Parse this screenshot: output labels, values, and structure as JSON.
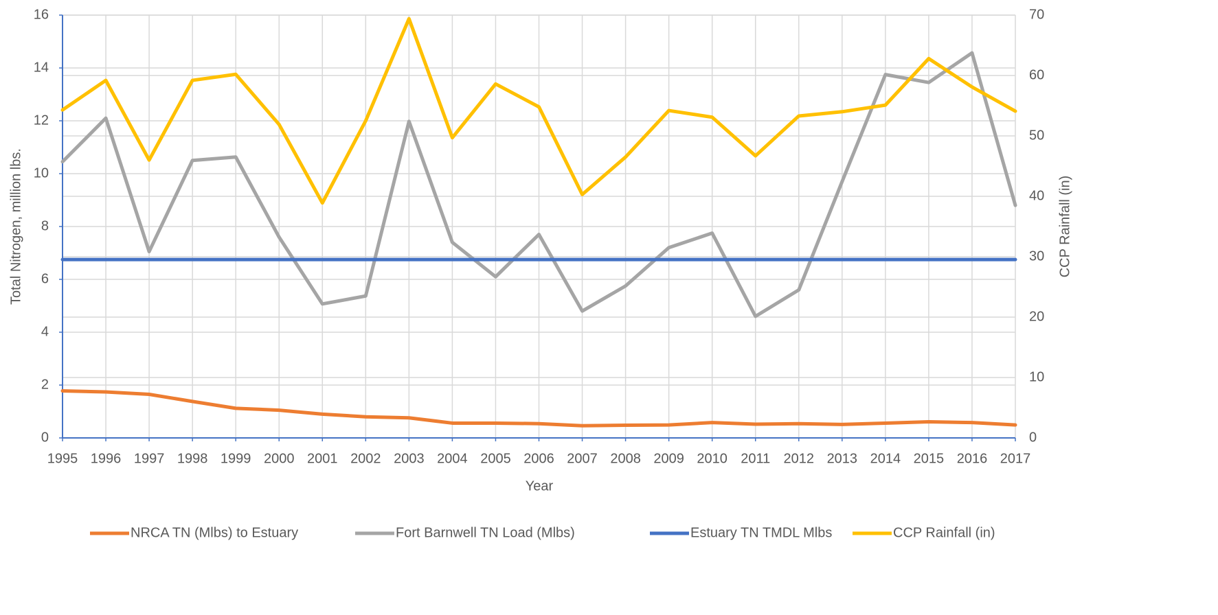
{
  "chart_data": {
    "type": "line",
    "x_label": "Year",
    "y_label": "Total Nitrogen, million lbs.",
    "y2_label": "CCP Rainfall (in)",
    "categories": [
      "1995",
      "1996",
      "1997",
      "1998",
      "1999",
      "2000",
      "2001",
      "2002",
      "2003",
      "2004",
      "2005",
      "2006",
      "2007",
      "2008",
      "2009",
      "2010",
      "2011",
      "2012",
      "2013",
      "2014",
      "2015",
      "2016",
      "2017"
    ],
    "ylim": [
      0,
      16
    ],
    "yticks": [
      0,
      2,
      4,
      6,
      8,
      10,
      12,
      14,
      16
    ],
    "y2lim": [
      0,
      70
    ],
    "y2ticks": [
      0,
      10,
      20,
      30,
      40,
      50,
      60,
      70
    ],
    "grid": true,
    "legend": "bottom",
    "series": [
      {
        "name": "NRCA TN (Mlbs) to Estuary",
        "color": "#ed7d31",
        "values": [
          1.78,
          1.74,
          1.65,
          1.38,
          1.12,
          1.05,
          0.9,
          0.8,
          0.76,
          0.56,
          0.56,
          0.54,
          0.46,
          0.48,
          0.49,
          0.58,
          0.52,
          0.54,
          0.51,
          0.56,
          0.61,
          0.58,
          0.49
        ]
      },
      {
        "name": "Fort Barnwell TN Load (Mlbs)",
        "color": "#a5a5a5",
        "values": [
          10.45,
          12.1,
          7.05,
          10.5,
          10.63,
          7.6,
          5.07,
          5.37,
          11.98,
          7.4,
          6.1,
          7.7,
          4.8,
          5.75,
          7.2,
          7.75,
          4.6,
          5.6,
          9.7,
          13.75,
          13.45,
          14.57,
          8.8
        ]
      },
      {
        "name": "Estuary TN TMDL Mlbs",
        "color": "#4472c4",
        "values": [
          6.75,
          6.75,
          6.75,
          6.75,
          6.75,
          6.75,
          6.75,
          6.75,
          6.75,
          6.75,
          6.75,
          6.75,
          6.75,
          6.75,
          6.75,
          6.75,
          6.75,
          6.75,
          6.75,
          6.75,
          6.75,
          6.75,
          6.75
        ]
      },
      {
        "name": "CCP Rainfall (in)",
        "color": "#ffc000",
        "axis": "y2",
        "values": [
          54.3,
          59.2,
          46.0,
          59.2,
          60.2,
          51.9,
          38.9,
          52.5,
          69.4,
          49.7,
          58.6,
          54.8,
          40.3,
          46.5,
          54.2,
          53.1,
          46.7,
          53.3,
          54.0,
          55.1,
          62.8,
          58.1,
          54.1
        ]
      }
    ]
  }
}
